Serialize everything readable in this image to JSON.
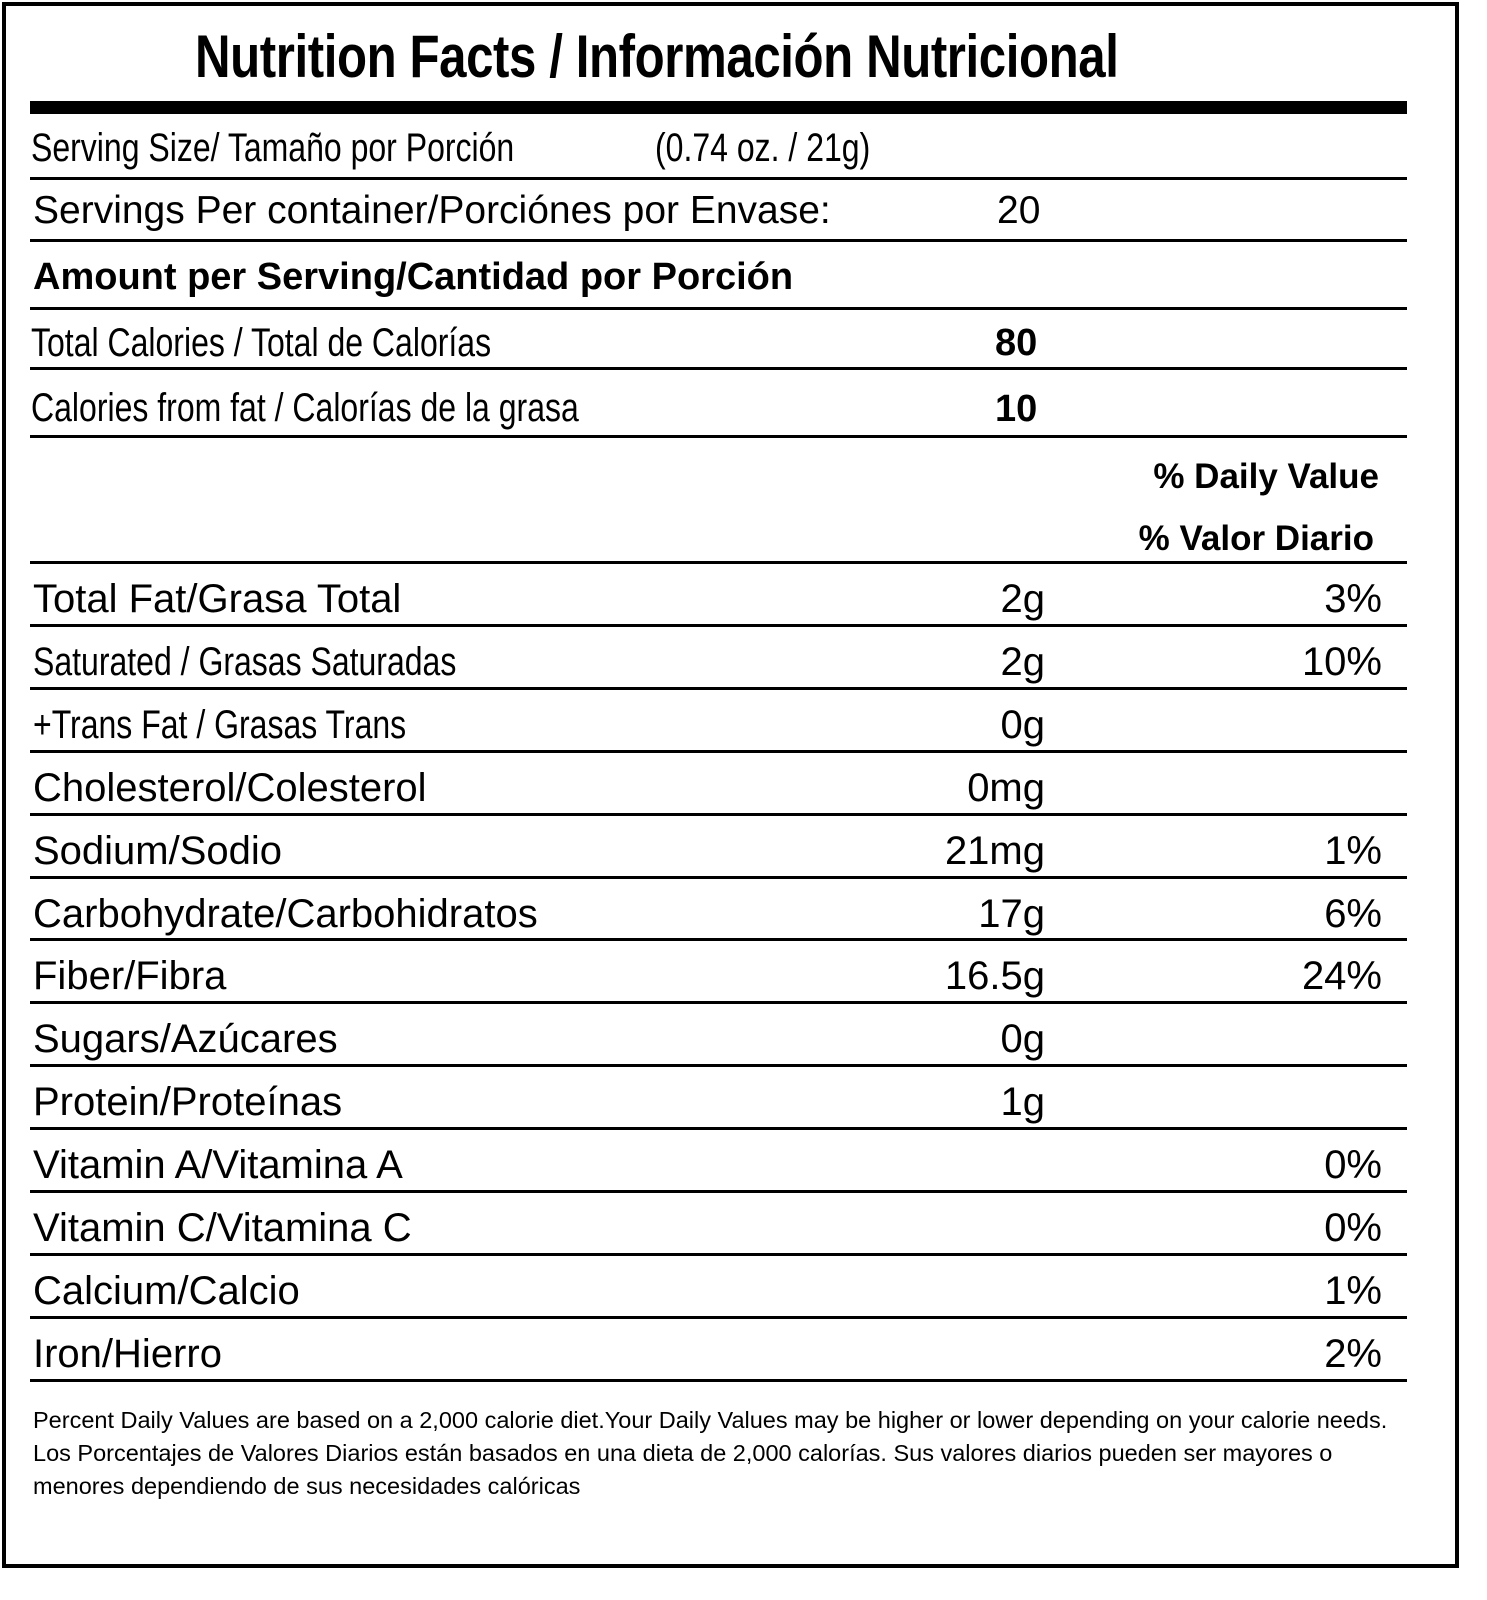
{
  "title": "Nutrition Facts / Información Nutricional",
  "serving_size": {
    "label": "Serving Size/ Tamaño por Porción",
    "value": "(0.74 oz. / 21g)"
  },
  "servings_per_container": {
    "label": "Servings Per container/Porciónes por Envase:",
    "value": "20"
  },
  "amount_header": "Amount per Serving/Cantidad por Porción",
  "calories": {
    "label": "Total Calories / Total de Calorías",
    "value": "80"
  },
  "calories_fat": {
    "label": "Calories from fat / Calorías de la grasa",
    "value": "10"
  },
  "dv_header": {
    "line1": "% Daily Value",
    "line2": "% Valor Diario"
  },
  "nutrients": [
    {
      "label": "Total Fat/Grasa Total",
      "amount": "2g",
      "dv": "3%"
    },
    {
      "label": "Saturated / Grasas Saturadas",
      "amount": "2g",
      "dv": "10%"
    },
    {
      "label": "+Trans Fat / Grasas Trans",
      "amount": "0g",
      "dv": ""
    },
    {
      "label": "Cholesterol/Colesterol",
      "amount": "0mg",
      "dv": ""
    },
    {
      "label": "Sodium/Sodio",
      "amount": "21mg",
      "dv": "1%"
    },
    {
      "label": "Carbohydrate/Carbohidratos",
      "amount": "17g",
      "dv": "6%"
    },
    {
      "label": "Fiber/Fibra",
      "amount": "16.5g",
      "dv": "24%"
    },
    {
      "label": "Sugars/Azúcares",
      "amount": "0g",
      "dv": ""
    },
    {
      "label": "Protein/Proteínas",
      "amount": "1g",
      "dv": ""
    },
    {
      "label": "Vitamin A/Vitamina A",
      "amount": "",
      "dv": "0%"
    },
    {
      "label": "Vitamin C/Vitamina C",
      "amount": "",
      "dv": "0%"
    },
    {
      "label": "Calcium/Calcio",
      "amount": "",
      "dv": "1%"
    },
    {
      "label": "Iron/Hierro",
      "amount": "",
      "dv": "2%"
    }
  ],
  "footnote": {
    "en": "Percent Daily Values are based on a 2,000 calorie diet.Your Daily Values may be higher or lower depending on your calorie needs.",
    "es": "Los Porcentajes de Valores Diarios están basados en una dieta de 2,000 calorías. Sus valores diarios pueden ser mayores o menores dependiendo de sus necesidades calóricas"
  }
}
